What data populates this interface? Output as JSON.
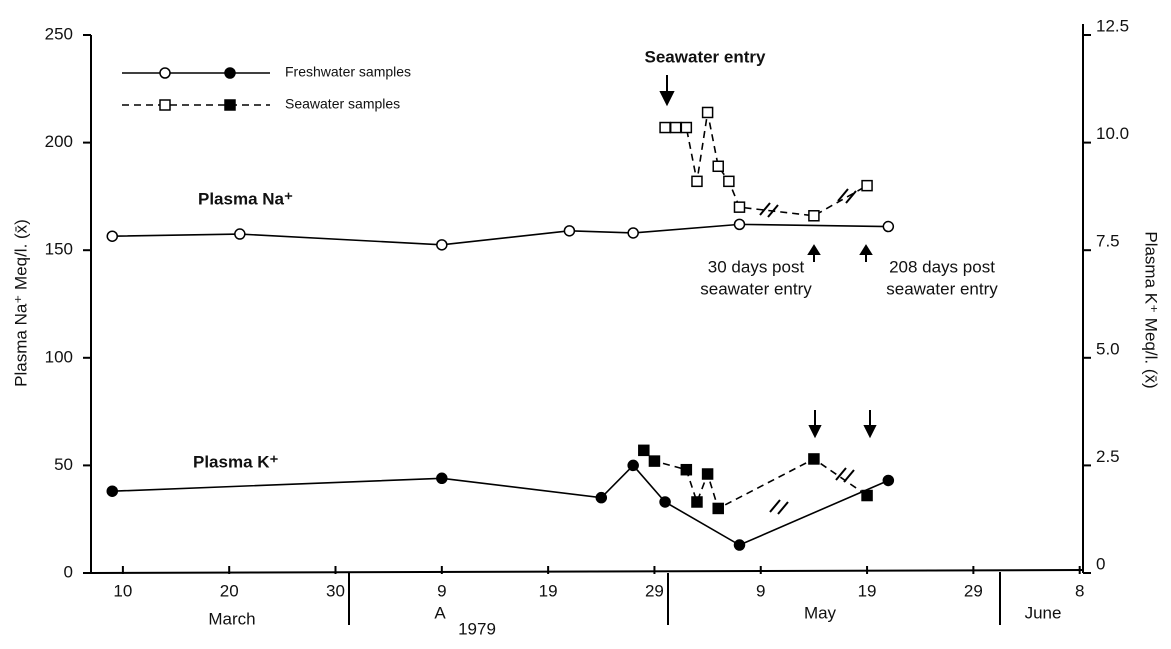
{
  "chart_data": {
    "type": "line",
    "y_label": "Plasma Na⁺ Meq/l. (x̄)",
    "y2_label": "Plasma K⁺ Meq/l. (x̄)",
    "xlim": [
      7,
      100.5
    ],
    "xticks": [
      {
        "value": 10,
        "label": "10"
      },
      {
        "value": 20,
        "label": "20"
      },
      {
        "value": 30,
        "label": "30"
      },
      {
        "value": 40,
        "label": "9"
      },
      {
        "value": 50,
        "label": "19"
      },
      {
        "value": 60,
        "label": "29"
      },
      {
        "value": 70,
        "label": "9"
      },
      {
        "value": 80,
        "label": "19"
      },
      {
        "value": 90,
        "label": "29"
      },
      {
        "value": 100,
        "label": "8"
      }
    ],
    "months": [
      "March",
      "A",
      "1979",
      "May",
      "June"
    ],
    "ylim": [
      0,
      250
    ],
    "yticks": [
      0,
      50,
      100,
      150,
      200,
      250
    ],
    "y2lim": [
      0,
      12.5
    ],
    "y2ticks": [
      0,
      2.5,
      {
        "value": 5,
        "label": "5.0"
      },
      7.5,
      {
        "value": 10,
        "label": "10.0"
      },
      12.5
    ],
    "na_label": "Plasma Na⁺",
    "k_label": "Plasma K⁺",
    "annotations": [
      "Seawater entry",
      "30 days post",
      "seawater entry",
      "208 days post",
      "seawater entry"
    ],
    "series": [
      {
        "name": "Freshwater samples",
        "color": "#000",
        "marker": "circle",
        "dashed": false,
        "x": [
          9,
          21,
          40,
          52,
          58,
          68,
          82
        ],
        "values": [
          156.5,
          157.5,
          152.5,
          159,
          158,
          162,
          161
        ],
        "k_x": [
          9,
          40,
          55,
          58,
          61,
          68,
          82
        ],
        "k_values": [
          1.9,
          2.2,
          1.75,
          2.5,
          1.65,
          0.65,
          2.15
        ]
      },
      {
        "name": "Seawater samples",
        "color": "#000",
        "marker": "square",
        "dashed": true,
        "x": [
          61,
          62,
          63,
          64,
          65,
          66,
          67,
          68,
          75,
          80
        ],
        "values": [
          207,
          207,
          207,
          182,
          214,
          189,
          182,
          170,
          166,
          180
        ],
        "k_x": [
          59,
          60,
          63,
          64,
          65,
          66,
          75,
          80
        ],
        "k_values": [
          2.85,
          2.6,
          2.4,
          1.65,
          2.3,
          1.5,
          2.65,
          1.8
        ]
      }
    ]
  }
}
